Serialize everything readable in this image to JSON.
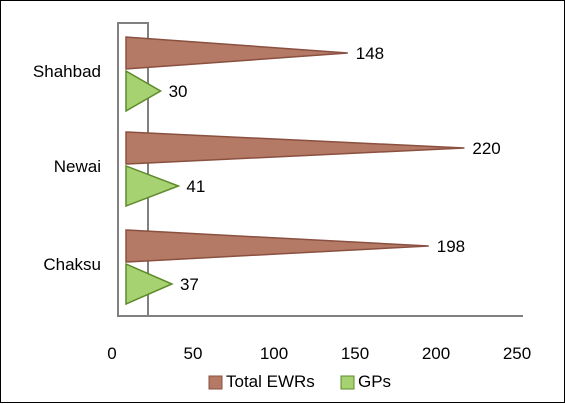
{
  "chart_data": {
    "type": "bar",
    "orientation": "horizontal",
    "bar_shape": "triangle",
    "categories": [
      "Shahbad",
      "Newai",
      "Chaksu"
    ],
    "series": [
      {
        "name": "Total EWRs",
        "values": [
          148,
          220,
          198
        ],
        "color": "#b47a66",
        "edge_color": "#8a5040"
      },
      {
        "name": "GPs",
        "values": [
          30,
          41,
          37
        ],
        "color": "#a6d272",
        "edge_color": "#5e8a2c"
      }
    ],
    "x_ticks": [
      0,
      50,
      100,
      150,
      200,
      250
    ],
    "xlim": [
      0,
      250
    ],
    "grid": false,
    "legend_position": "bottom",
    "axis_color": "#808080"
  }
}
